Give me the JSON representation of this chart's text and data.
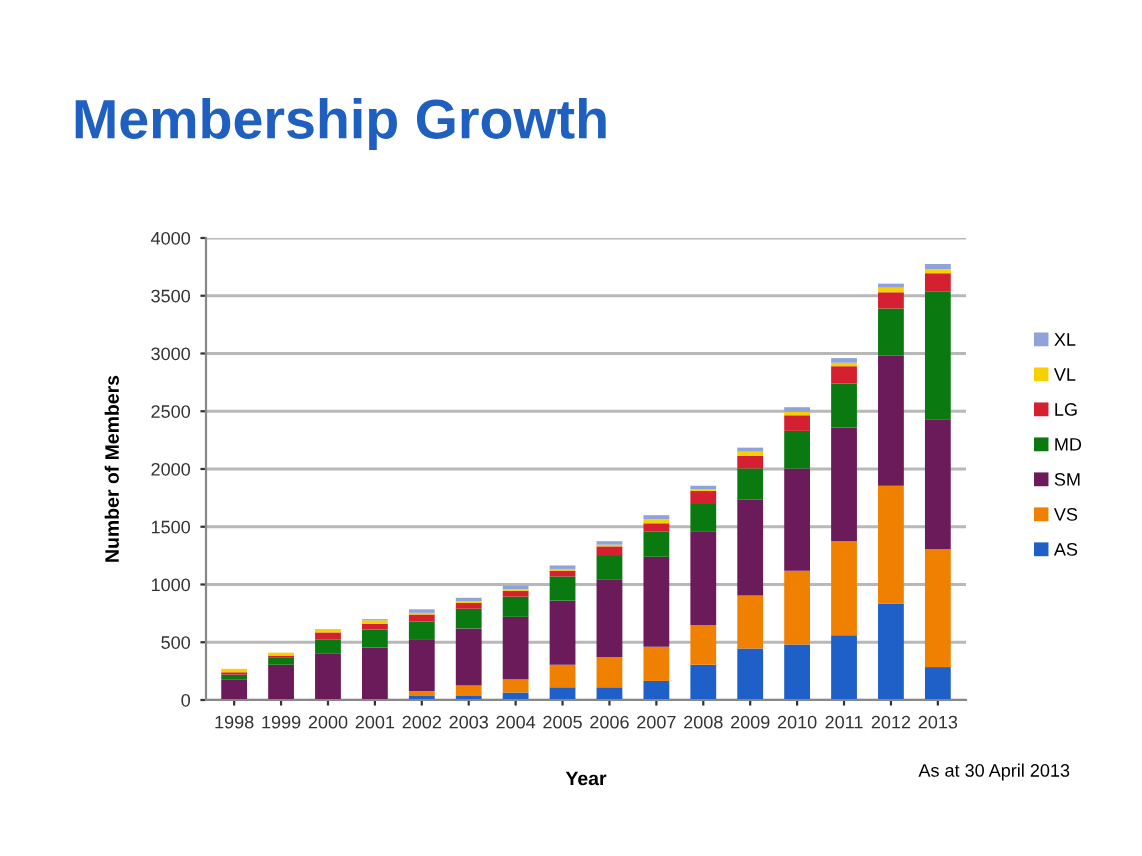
{
  "chart_data": {
    "type": "bar",
    "stacked": true,
    "title": "Membership Growth",
    "xlabel": "Year",
    "ylabel": "Number of Members",
    "categories": [
      "1998",
      "1999",
      "2000",
      "2001",
      "2002",
      "2003",
      "2004",
      "2005",
      "2006",
      "2007",
      "2008",
      "2009",
      "2010",
      "2011",
      "2012",
      "2013"
    ],
    "series": [
      {
        "name": "AS",
        "color": "#1f5fc8",
        "values": [
          0,
          0,
          0,
          0,
          40,
          40,
          65,
          110,
          110,
          165,
          305,
          445,
          480,
          560,
          835,
          285
        ]
      },
      {
        "name": "VS",
        "color": "#f08000",
        "values": [
          0,
          0,
          0,
          0,
          35,
          85,
          115,
          195,
          260,
          295,
          345,
          460,
          640,
          815,
          1020,
          1020
        ]
      },
      {
        "name": "SM",
        "color": "#6b1a5a",
        "values": [
          175,
          305,
          405,
          455,
          445,
          495,
          540,
          555,
          675,
          780,
          810,
          830,
          885,
          985,
          1125,
          1125
        ]
      },
      {
        "name": "MD",
        "color": "#0a7a10",
        "values": [
          45,
          60,
          120,
          155,
          160,
          170,
          175,
          210,
          210,
          220,
          245,
          270,
          325,
          380,
          410,
          1110
        ]
      },
      {
        "name": "LG",
        "color": "#d42030",
        "values": [
          20,
          20,
          60,
          50,
          60,
          50,
          50,
          50,
          75,
          70,
          105,
          110,
          135,
          150,
          140,
          155
        ]
      },
      {
        "name": "VL",
        "color": "#f8d000",
        "values": [
          30,
          25,
          30,
          30,
          15,
          15,
          15,
          15,
          15,
          35,
          15,
          35,
          30,
          30,
          40,
          35
        ]
      },
      {
        "name": "XL",
        "color": "#8fa3d8",
        "values": [
          0,
          0,
          0,
          10,
          30,
          30,
          30,
          30,
          30,
          35,
          30,
          35,
          40,
          40,
          35,
          45
        ]
      }
    ],
    "ylim": [
      0,
      4000
    ],
    "yticks": [
      0,
      500,
      1000,
      1500,
      2000,
      2500,
      3000,
      3500,
      4000
    ],
    "grid": "y",
    "legend": "right",
    "annotations": [
      "As at 30 April 2013"
    ]
  }
}
